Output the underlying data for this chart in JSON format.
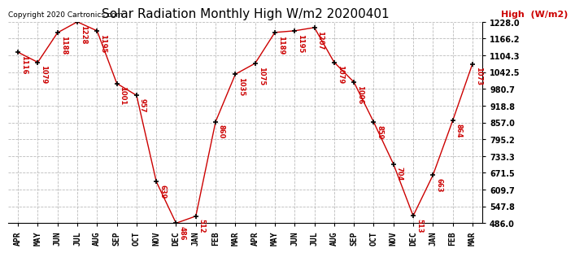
{
  "title": "Solar Radiation Monthly High W/m2 20200401",
  "copyright": "Copyright 2020 Cartronics.com",
  "legend_label": "High  (W/m2)",
  "x_labels": [
    "APR",
    "MAY",
    "JUN",
    "JUL",
    "AUG",
    "SEP",
    "OCT",
    "NOV",
    "DEC",
    "JAN",
    "FEB",
    "MAR",
    "APR",
    "MAY",
    "JUN",
    "JUL",
    "AUG",
    "SEP",
    "OCT",
    "NOV",
    "DEC",
    "JAN",
    "FEB",
    "MAR"
  ],
  "y_values": [
    1116,
    1079,
    1188,
    1228,
    1195,
    1001,
    957,
    639,
    486,
    512,
    860,
    1035,
    1075,
    1189,
    1195,
    1207,
    1079,
    1006,
    859,
    704,
    513,
    663,
    864,
    1073
  ],
  "y_min": 486.0,
  "y_max": 1228.0,
  "y_ticks": [
    486.0,
    547.8,
    609.7,
    671.5,
    733.3,
    795.2,
    857.0,
    918.8,
    980.7,
    1042.5,
    1104.3,
    1166.2,
    1228.0
  ],
  "line_color": "#cc0000",
  "marker_color": "#000000",
  "bg_color": "#ffffff",
  "grid_color": "#bbbbbb",
  "title_color": "#000000",
  "label_color": "#cc0000",
  "copyright_color": "#000000",
  "legend_color": "#cc0000",
  "title_fontsize": 11,
  "tick_fontsize": 7,
  "annot_fontsize": 6,
  "copyright_fontsize": 6.5,
  "legend_fontsize": 8
}
